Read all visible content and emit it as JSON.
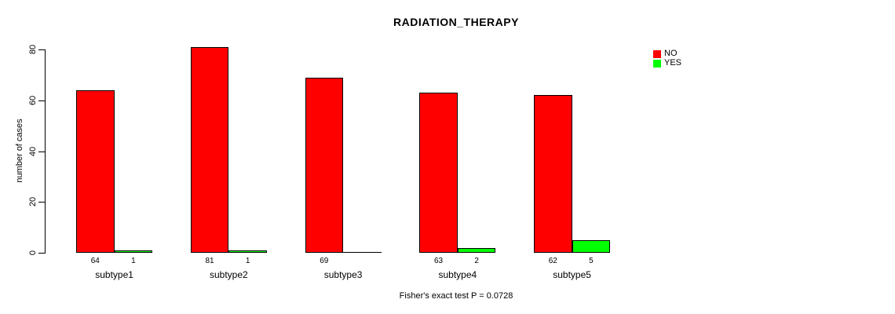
{
  "chart_data": {
    "type": "bar",
    "title": "RADIATION_THERAPY",
    "ylabel": "number of cases",
    "xlabel": "",
    "ylim": [
      0,
      80
    ],
    "yticks": [
      0,
      20,
      40,
      60,
      80
    ],
    "categories": [
      "subtype1",
      "subtype2",
      "subtype3",
      "subtype4",
      "subtype5"
    ],
    "series": [
      {
        "name": "NO",
        "color": "#FF0000",
        "values": [
          64,
          81,
          69,
          63,
          62
        ]
      },
      {
        "name": "YES",
        "color": "#00FF00",
        "values": [
          1,
          1,
          0,
          2,
          5
        ]
      }
    ],
    "bar_value_labels_shown": true,
    "legend_position": "top-right",
    "grid": false,
    "footer": "Fisher's exact test P = 0.0728"
  }
}
